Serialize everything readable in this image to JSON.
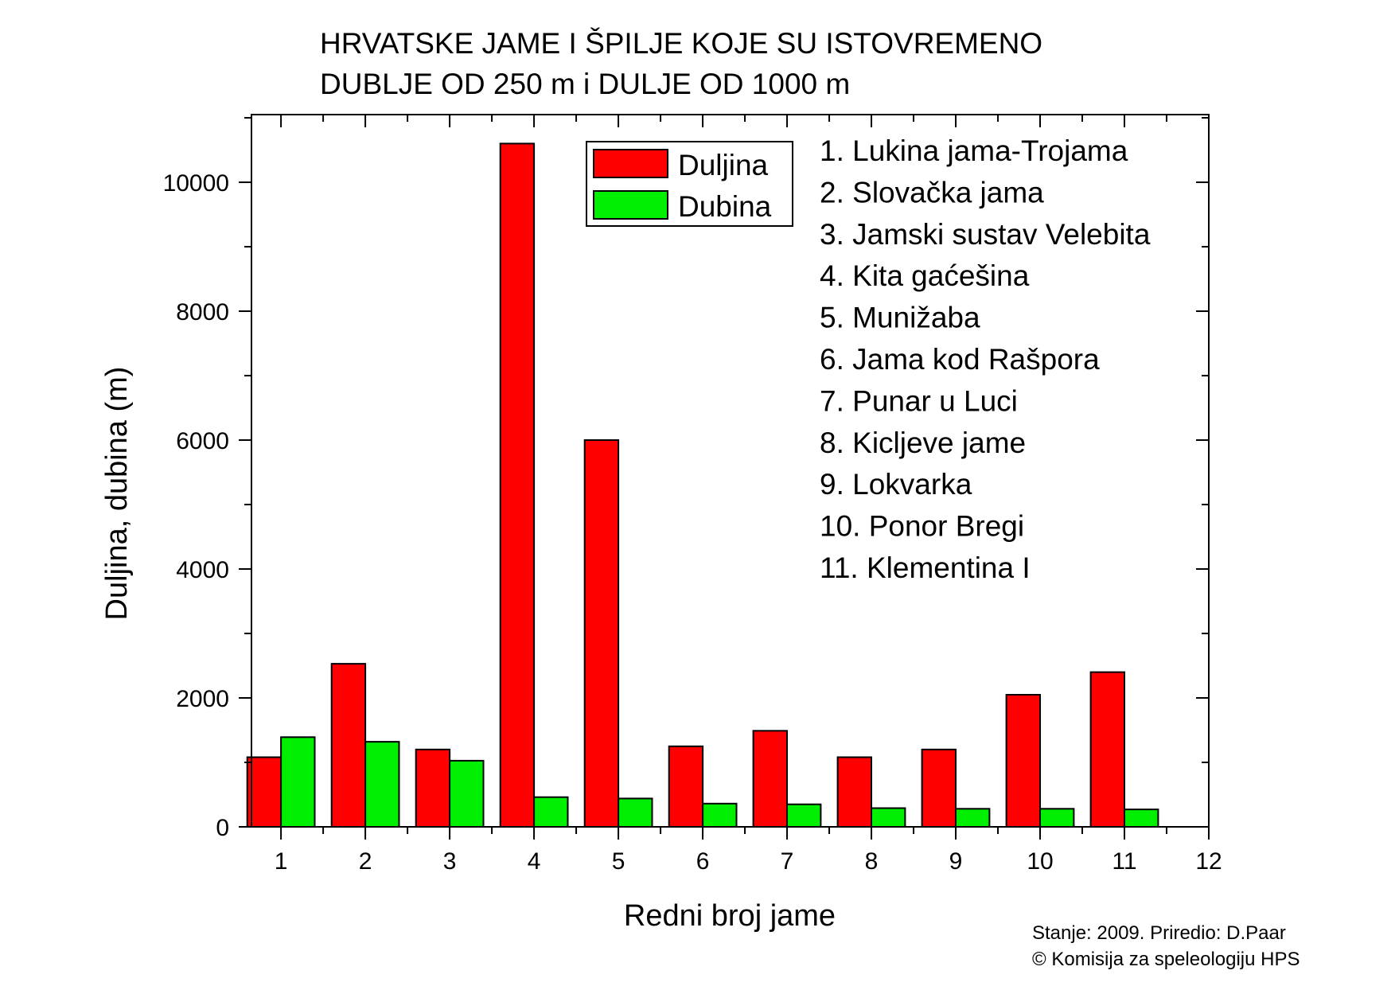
{
  "chart_data": {
    "type": "bar",
    "title": [
      "HRVATSKE JAME I ŠPILJE KOJE SU ISTOVREMENO",
      "DUBLJE OD 250 m i DULJE OD 1000 m"
    ],
    "xlabel": "Redni broj jame",
    "ylabel": "Duljina, dubina (m)",
    "categories": [
      1,
      2,
      3,
      4,
      5,
      6,
      7,
      8,
      9,
      10,
      11
    ],
    "series": [
      {
        "name": "Duljina",
        "color": "#ff0000",
        "values": [
          1080,
          2530,
          1200,
          10600,
          6000,
          1250,
          1490,
          1080,
          1200,
          2050,
          2400
        ]
      },
      {
        "name": "Dubina",
        "color": "#00ee00",
        "values": [
          1392,
          1320,
          1026,
          460,
          440,
          360,
          350,
          290,
          280,
          280,
          271
        ]
      }
    ],
    "xlim": [
      0.65,
      12
    ],
    "ylim": [
      0,
      11050
    ],
    "xticks": [
      1,
      2,
      3,
      4,
      5,
      6,
      7,
      8,
      9,
      10,
      11,
      12
    ],
    "yticks": [
      0,
      2000,
      4000,
      6000,
      8000,
      10000
    ],
    "ytick_labels": [
      "0",
      "2000",
      "4000",
      "6000",
      "8000",
      "10000"
    ],
    "legend_position": "top",
    "grid": false,
    "names_list": [
      "1. Lukina jama-Trojama",
      "2. Slovačka jama",
      "3. Jamski sustav Velebita",
      "4. Kita gaćešina",
      "5. Munižaba",
      "6. Jama kod Rašpora",
      "7. Punar u Luci",
      "8. Kicljeve jame",
      "9. Lokvarka",
      "10. Ponor Bregi",
      "11. Klementina I"
    ],
    "credits": [
      "Stanje: 2009.  Priredio: D.Paar",
      "© Komisija za speleologiju HPS"
    ]
  }
}
